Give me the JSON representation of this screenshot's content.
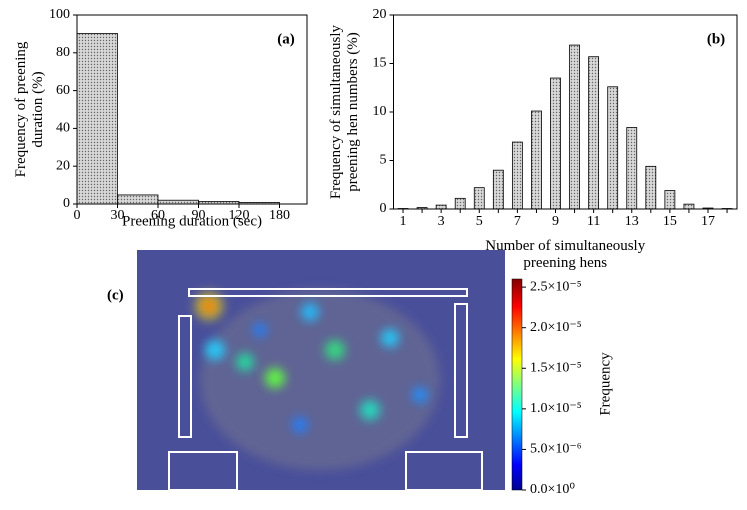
{
  "chart_data": [
    {
      "type": "histogram",
      "label": "(a)",
      "xlabel": "Preening duration (sec)",
      "ylabel": [
        "Frequency of preening",
        "duration (%)"
      ],
      "bins": [
        0,
        30,
        60,
        90,
        120,
        180
      ],
      "values": [
        90.2,
        4.8,
        2.0,
        1.3,
        0.8
      ],
      "color": "#c8c8c8",
      "ylim": [
        0,
        100
      ],
      "yticks": [
        0,
        20,
        40,
        60,
        80,
        100
      ]
    },
    {
      "type": "bar",
      "label": "(b)",
      "xlabel": [
        "Number of simultaneously",
        "preening hens"
      ],
      "ylabel": [
        "Frequency of simultaneously",
        "preening hen numbers (%)"
      ],
      "categories": [
        "1",
        null,
        "3",
        null,
        "5",
        null,
        "7",
        null,
        "9",
        null,
        "11",
        null,
        "13",
        null,
        "15",
        null,
        "17",
        null
      ],
      "values": [
        0.05,
        0.15,
        0.4,
        1.1,
        2.2,
        4.0,
        6.9,
        10.1,
        13.5,
        16.9,
        15.7,
        12.6,
        8.4,
        4.4,
        1.9,
        0.5,
        0.1,
        0.05
      ],
      "color": "#c8c8c8",
      "ylim": [
        0,
        20
      ],
      "yticks": [
        0,
        5,
        10,
        15,
        20
      ]
    },
    {
      "type": "heatmap",
      "label": "(c)",
      "colorbar_label": "Frequency",
      "clim": [
        0,
        2.6e-05
      ],
      "cticks": [
        {
          "value": 0,
          "label": "0.0×10⁰"
        },
        {
          "value": 5e-06,
          "label": "5.0×10⁻⁶"
        },
        {
          "value": 1e-05,
          "label": "1.0×10⁻⁵"
        },
        {
          "value": 1.5e-05,
          "label": "1.5×10⁻⁵"
        },
        {
          "value": 2e-05,
          "label": "2.0×10⁻⁵"
        },
        {
          "value": 2.5e-05,
          "label": "2.5×10⁻⁵"
        }
      ]
    }
  ]
}
